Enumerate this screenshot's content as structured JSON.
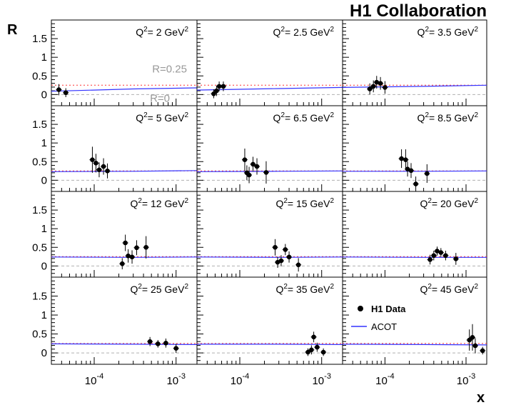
{
  "header": {
    "collaboration": "H1 Collaboration",
    "y_label": "R",
    "x_label": "x"
  },
  "legend": {
    "entries": [
      {
        "label": "H1 Data",
        "style": "marker"
      },
      {
        "label": "ACOT",
        "style": "line"
      }
    ]
  },
  "annotations": {
    "r_quarter": "R=0.25",
    "r_zero": "R=0"
  },
  "x_ticks": [
    {
      "base": "10",
      "exp": "-4"
    },
    {
      "base": "10",
      "exp": "-3"
    }
  ],
  "y_ticks": [
    "0",
    "0.5",
    "1",
    "1.5"
  ],
  "colors": {
    "data": "#000000",
    "acot": "#3333ff",
    "reference_025": "#ff3333",
    "reference_0": "#b0b0b0",
    "annotation_text": "#999999"
  },
  "chart_data": {
    "type": "scatter",
    "x_scale": "log",
    "xlim": [
      3e-05,
      0.0018
    ],
    "ylim": [
      -0.3,
      2.0
    ],
    "grid": false,
    "legend_position": "bottom-right panel",
    "reference_lines": [
      0.25,
      0
    ],
    "panels": [
      {
        "q2_label": "Q",
        "q2_exp": "2",
        "q2_value": "= 2 GeV",
        "unit_exp": "2",
        "acot": {
          "x": [
            3e-05,
            0.0001,
            0.0003,
            0.0018
          ],
          "y": [
            0.09,
            0.12,
            0.15,
            0.18
          ]
        },
        "points": [
          {
            "x": 3.7e-05,
            "y": 0.13,
            "err": 0.15
          },
          {
            "x": 4.5e-05,
            "y": 0.05,
            "err": 0.12
          }
        ]
      },
      {
        "q2_label": "Q",
        "q2_exp": "2",
        "q2_value": "= 2.5 GeV",
        "unit_exp": "2",
        "acot": {
          "x": [
            3e-05,
            0.0003,
            0.0018
          ],
          "y": [
            0.12,
            0.16,
            0.19
          ]
        },
        "points": [
          {
            "x": 4.8e-05,
            "y": 0.02,
            "err": 0.12
          },
          {
            "x": 5.2e-05,
            "y": 0.1,
            "err": 0.14
          },
          {
            "x": 5.6e-05,
            "y": 0.22,
            "err": 0.13
          },
          {
            "x": 6.3e-05,
            "y": 0.22,
            "err": 0.13
          }
        ]
      },
      {
        "q2_label": "Q",
        "q2_exp": "2",
        "q2_value": "= 3.5 GeV",
        "unit_exp": "2",
        "acot": {
          "x": [
            3e-05,
            0.0003,
            0.0018
          ],
          "y": [
            0.19,
            0.22,
            0.25
          ]
        },
        "points": [
          {
            "x": 6.5e-05,
            "y": 0.15,
            "err": 0.15
          },
          {
            "x": 7.2e-05,
            "y": 0.22,
            "err": 0.16
          },
          {
            "x": 7.9e-05,
            "y": 0.33,
            "err": 0.17
          },
          {
            "x": 8.8e-05,
            "y": 0.3,
            "err": 0.17
          },
          {
            "x": 0.0001,
            "y": 0.19,
            "err": 0.17
          }
        ]
      },
      {
        "q2_label": "Q",
        "q2_exp": "2",
        "q2_value": "= 5 GeV",
        "unit_exp": "2",
        "acot": {
          "x": [
            3e-05,
            0.0003,
            0.0018
          ],
          "y": [
            0.23,
            0.24,
            0.26
          ]
        },
        "points": [
          {
            "x": 9.5e-05,
            "y": 0.55,
            "err": 0.35
          },
          {
            "x": 0.000105,
            "y": 0.46,
            "err": 0.25
          },
          {
            "x": 0.000115,
            "y": 0.28,
            "err": 0.2
          },
          {
            "x": 0.00013,
            "y": 0.37,
            "err": 0.22
          },
          {
            "x": 0.000145,
            "y": 0.25,
            "err": 0.2
          }
        ]
      },
      {
        "q2_label": "Q",
        "q2_exp": "2",
        "q2_value": "= 6.5 GeV",
        "unit_exp": "2",
        "acot": {
          "x": [
            3e-05,
            0.0003,
            0.0018
          ],
          "y": [
            0.23,
            0.24,
            0.25
          ]
        },
        "points": [
          {
            "x": 0.000115,
            "y": 0.55,
            "err": 0.3
          },
          {
            "x": 0.000122,
            "y": 0.2,
            "err": 0.2
          },
          {
            "x": 0.00013,
            "y": 0.14,
            "err": 0.22
          },
          {
            "x": 0.000145,
            "y": 0.43,
            "err": 0.2
          },
          {
            "x": 0.000162,
            "y": 0.37,
            "err": 0.22
          },
          {
            "x": 0.00021,
            "y": 0.21,
            "err": 0.3
          }
        ]
      },
      {
        "q2_label": "Q",
        "q2_exp": "2",
        "q2_value": "= 8.5 GeV",
        "unit_exp": "2",
        "acot": {
          "x": [
            3e-05,
            0.0003,
            0.0018
          ],
          "y": [
            0.24,
            0.24,
            0.25
          ]
        },
        "points": [
          {
            "x": 0.00016,
            "y": 0.58,
            "err": 0.25
          },
          {
            "x": 0.00018,
            "y": 0.55,
            "err": 0.28
          },
          {
            "x": 0.00019,
            "y": 0.3,
            "err": 0.2
          },
          {
            "x": 0.00021,
            "y": 0.26,
            "err": 0.2
          },
          {
            "x": 0.00024,
            "y": -0.1,
            "err": 0.2
          },
          {
            "x": 0.00033,
            "y": 0.18,
            "err": 0.25
          }
        ]
      },
      {
        "q2_label": "Q",
        "q2_exp": "2",
        "q2_value": "= 12 GeV",
        "unit_exp": "2",
        "acot": {
          "x": [
            3e-05,
            0.0003,
            0.0018
          ],
          "y": [
            0.24,
            0.23,
            0.24
          ]
        },
        "points": [
          {
            "x": 0.00022,
            "y": 0.06,
            "err": 0.15
          },
          {
            "x": 0.00024,
            "y": 0.62,
            "err": 0.22
          },
          {
            "x": 0.00026,
            "y": 0.27,
            "err": 0.18
          },
          {
            "x": 0.00029,
            "y": 0.24,
            "err": 0.18
          },
          {
            "x": 0.00033,
            "y": 0.49,
            "err": 0.2
          },
          {
            "x": 0.00043,
            "y": 0.5,
            "err": 0.3
          }
        ]
      },
      {
        "q2_label": "Q",
        "q2_exp": "2",
        "q2_value": "= 15 GeV",
        "unit_exp": "2",
        "acot": {
          "x": [
            3e-05,
            0.0003,
            0.0018
          ],
          "y": [
            0.24,
            0.23,
            0.24
          ]
        },
        "points": [
          {
            "x": 0.00027,
            "y": 0.5,
            "err": 0.22
          },
          {
            "x": 0.00029,
            "y": 0.1,
            "err": 0.15
          },
          {
            "x": 0.00032,
            "y": 0.14,
            "err": 0.15
          },
          {
            "x": 0.00036,
            "y": 0.44,
            "err": 0.15
          },
          {
            "x": 0.0004,
            "y": 0.24,
            "err": 0.15
          },
          {
            "x": 0.00052,
            "y": 0.03,
            "err": 0.18
          }
        ]
      },
      {
        "q2_label": "Q",
        "q2_exp": "2",
        "q2_value": "= 20 GeV",
        "unit_exp": "2",
        "acot": {
          "x": [
            3e-05,
            0.0003,
            0.0018
          ],
          "y": [
            0.24,
            0.23,
            0.23
          ]
        },
        "points": [
          {
            "x": 0.00036,
            "y": 0.17,
            "err": 0.13
          },
          {
            "x": 0.0004,
            "y": 0.28,
            "err": 0.13
          },
          {
            "x": 0.00044,
            "y": 0.4,
            "err": 0.12
          },
          {
            "x": 0.00049,
            "y": 0.36,
            "err": 0.12
          },
          {
            "x": 0.00056,
            "y": 0.28,
            "err": 0.13
          },
          {
            "x": 0.00075,
            "y": 0.19,
            "err": 0.16
          }
        ]
      },
      {
        "q2_label": "Q",
        "q2_exp": "2",
        "q2_value": "= 25 GeV",
        "unit_exp": "2",
        "acot": {
          "x": [
            3e-05,
            0.0003,
            0.0018
          ],
          "y": [
            0.24,
            0.23,
            0.22
          ]
        },
        "points": [
          {
            "x": 0.00048,
            "y": 0.3,
            "err": 0.12
          },
          {
            "x": 0.0006,
            "y": 0.24,
            "err": 0.1
          },
          {
            "x": 0.00075,
            "y": 0.26,
            "err": 0.12
          },
          {
            "x": 0.001,
            "y": 0.12,
            "err": 0.12
          }
        ]
      },
      {
        "q2_label": "Q",
        "q2_exp": "2",
        "q2_value": "= 35 GeV",
        "unit_exp": "2",
        "acot": {
          "x": [
            3e-05,
            0.0003,
            0.0018
          ],
          "y": [
            0.23,
            0.23,
            0.22
          ]
        },
        "points": [
          {
            "x": 0.00068,
            "y": 0.02,
            "err": 0.1
          },
          {
            "x": 0.00075,
            "y": 0.08,
            "err": 0.12
          },
          {
            "x": 0.0008,
            "y": 0.42,
            "err": 0.14
          },
          {
            "x": 0.00088,
            "y": 0.15,
            "err": 0.12
          },
          {
            "x": 0.00105,
            "y": 0.02,
            "err": 0.1
          }
        ]
      },
      {
        "q2_label": "Q",
        "q2_exp": "2",
        "q2_value": "= 45 GeV",
        "unit_exp": "2",
        "acot": {
          "x": [
            3e-05,
            0.0003,
            0.0018
          ],
          "y": [
            0.23,
            0.22,
            0.21
          ]
        },
        "points": [
          {
            "x": 0.0011,
            "y": 0.34,
            "err": 0.28
          },
          {
            "x": 0.0012,
            "y": 0.41,
            "err": 0.35
          },
          {
            "x": 0.0013,
            "y": 0.19,
            "err": 0.2
          },
          {
            "x": 0.0016,
            "y": 0.06,
            "err": 0.1
          }
        ]
      }
    ]
  }
}
